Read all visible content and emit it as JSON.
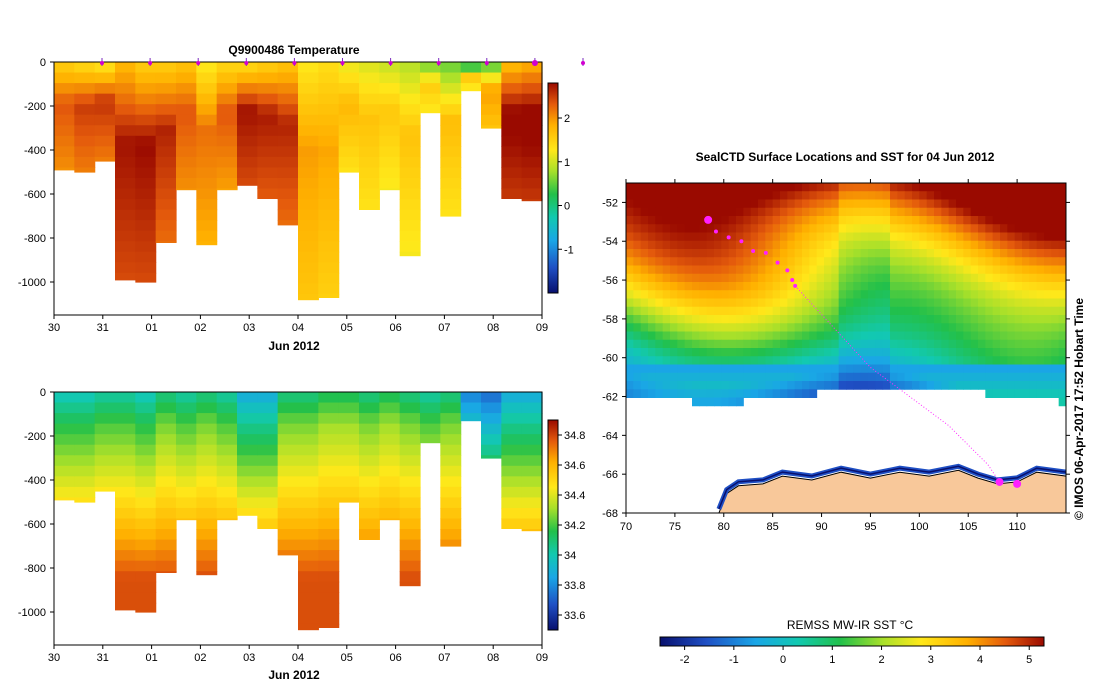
{
  "chart_data": [
    {
      "type": "heatmap",
      "title": "Q9900486  Temperature",
      "xlabel": "Jun 2012",
      "x_ticks": [
        "30",
        "31",
        "01",
        "02",
        "03",
        "04",
        "05",
        "06",
        "07",
        "08",
        "09"
      ],
      "y_ticks": [
        "0",
        "-200",
        "-400",
        "-600",
        "-800",
        "-1000"
      ],
      "ylim": [
        -1150,
        0
      ],
      "colorbar": {
        "ticks": [
          "2",
          "1",
          "0",
          "-1"
        ],
        "range": [
          -2,
          2.8
        ]
      },
      "profile_depths": [
        -490,
        -500,
        -450,
        -990,
        -1000,
        -820,
        -580,
        -830,
        -580,
        -560,
        -620,
        -740,
        -1080,
        -1070,
        -500,
        -670,
        -580,
        -880,
        -230,
        -700,
        -130,
        -300,
        -620,
        -630
      ],
      "profile_top_temps": [
        1.6,
        1.5,
        1.4,
        1.8,
        1.6,
        1.6,
        1.7,
        1.3,
        1.5,
        1.5,
        1.6,
        1.7,
        1.3,
        1.4,
        1.2,
        1.1,
        1.0,
        0.9,
        0.7,
        0.6,
        0.4,
        0.6,
        1.8,
        1.9
      ],
      "profile_bottom_temps": [
        2.0,
        2.1,
        2.1,
        2.4,
        2.4,
        2.2,
        2.0,
        1.8,
        1.9,
        2.4,
        2.3,
        2.2,
        1.6,
        1.5,
        1.3,
        1.3,
        1.2,
        1.2,
        1.2,
        1.3,
        1.1,
        1.6,
        2.5,
        2.5
      ]
    },
    {
      "type": "heatmap",
      "title": "",
      "xlabel": "Jun 2012",
      "x_ticks": [
        "30",
        "31",
        "01",
        "02",
        "03",
        "04",
        "05",
        "06",
        "07",
        "08",
        "09"
      ],
      "y_ticks": [
        "0",
        "-200",
        "-400",
        "-600",
        "-800",
        "-1000"
      ],
      "ylim": [
        -1150,
        0
      ],
      "colorbar": {
        "ticks": [
          "34.8",
          "34.6",
          "34.4",
          "34.2",
          "34",
          "33.8",
          "33.6"
        ],
        "range": [
          33.5,
          34.9
        ]
      },
      "profile_depths": [
        -490,
        -500,
        -450,
        -990,
        -1000,
        -820,
        -580,
        -830,
        -580,
        -560,
        -620,
        -740,
        -1080,
        -1070,
        -500,
        -670,
        -580,
        -880,
        -230,
        -700,
        -130,
        -300,
        -620,
        -630
      ],
      "profile_top_sal": [
        34.0,
        34.0,
        34.05,
        34.05,
        34.0,
        34.1,
        34.05,
        34.1,
        34.05,
        33.9,
        33.9,
        34.1,
        34.1,
        34.15,
        34.15,
        34.1,
        34.15,
        34.1,
        34.05,
        34.1,
        33.8,
        33.75,
        33.9,
        33.9
      ]
    },
    {
      "type": "map",
      "title": "SealCTD Surface Locations and SST for 04 Jun 2012",
      "x_ticks": [
        "70",
        "75",
        "80",
        "85",
        "90",
        "95",
        "100",
        "105",
        "110"
      ],
      "y_ticks": [
        "-52",
        "-54",
        "-56",
        "-58",
        "-60",
        "-62",
        "-64",
        "-66",
        "-68"
      ],
      "xlim": [
        70,
        115
      ],
      "ylim": [
        -68,
        -51
      ],
      "side_label": "© IMOS 06-Apr-2017 17:52 Hobart Time",
      "colorbar": {
        "label": "REMSS MW-IR SST °C",
        "ticks": [
          "-2",
          "-1",
          "0",
          "1",
          "2",
          "3",
          "4",
          "5"
        ],
        "range": [
          -2.5,
          5.3
        ]
      },
      "track_points": [
        {
          "lon": 78.4,
          "lat": -52.9,
          "large": true
        },
        {
          "lon": 79.2,
          "lat": -53.5,
          "large": false
        },
        {
          "lon": 80.5,
          "lat": -53.8,
          "large": false
        },
        {
          "lon": 81.8,
          "lat": -54.0,
          "large": false
        },
        {
          "lon": 83.0,
          "lat": -54.5,
          "large": false
        },
        {
          "lon": 84.3,
          "lat": -54.6,
          "large": false
        },
        {
          "lon": 85.5,
          "lat": -55.1,
          "large": false
        },
        {
          "lon": 86.5,
          "lat": -55.5,
          "large": false
        },
        {
          "lon": 87.0,
          "lat": -56.0,
          "large": false
        },
        {
          "lon": 87.3,
          "lat": -56.3,
          "large": false
        },
        {
          "lon": 108.2,
          "lat": -66.4,
          "large": true
        },
        {
          "lon": 110.0,
          "lat": -66.5,
          "large": true
        }
      ]
    }
  ]
}
